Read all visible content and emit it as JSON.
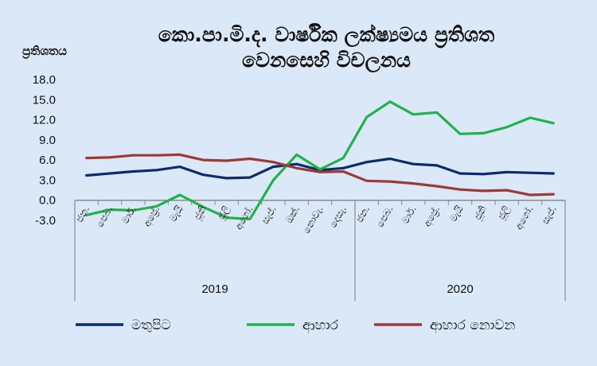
{
  "chart_data": {
    "type": "line",
    "title_lines": [
      "කො.පා.මි.ද. වාර්ෂික ලක්ෂ්‍යමය ප්‍රතිශත",
      "වෙනසෙහි විචලනය"
    ],
    "ylabel": "ප්‍රතිශතය",
    "xlabel": "",
    "ylim": [
      -3.0,
      18.0
    ],
    "yticks": [
      "18.0",
      "15.0",
      "12.0",
      "9.0",
      "6.0",
      "3.0",
      "0.0",
      "-3.0"
    ],
    "ytick_values": [
      18,
      15,
      12,
      9,
      6,
      3,
      0,
      -3
    ],
    "grid": false,
    "legend_position": "bottom",
    "categories": [
      "ජන.",
      "පෙබ.",
      "මාර්.",
      "අප්‍රේ.",
      "මැයි",
      "ජූනි",
      "ජූලි",
      "අගෝ.",
      "සැප්.",
      "ඔක්.",
      "නොවැ.",
      "දෙසැ.",
      "ජන.",
      "පෙබ.",
      "මාර්.",
      "අප්‍රේ.",
      "මැයි",
      "ජූනි",
      "ජූලි",
      "අගෝ.",
      "සැප්."
    ],
    "year_groups": [
      {
        "label": "2019",
        "start": 0,
        "end": 11
      },
      {
        "label": "2020",
        "start": 12,
        "end": 20
      }
    ],
    "series": [
      {
        "name": "මතුපිට",
        "color": "#0d2a6e",
        "values": [
          3.7,
          4.0,
          4.3,
          4.5,
          5.0,
          3.8,
          3.3,
          3.4,
          5.0,
          5.4,
          4.5,
          4.8,
          5.7,
          6.2,
          5.4,
          5.2,
          4.0,
          3.9,
          4.2,
          4.1,
          4.0
        ]
      },
      {
        "name": "ආහාර",
        "color": "#22b24c",
        "values": [
          -2.2,
          -1.4,
          -1.5,
          -0.9,
          0.8,
          -1.0,
          -2.6,
          -2.8,
          3.0,
          6.8,
          4.6,
          6.3,
          12.4,
          14.7,
          12.8,
          13.1,
          9.9,
          10.0,
          10.9,
          12.3,
          11.5
        ]
      },
      {
        "name": "ආහාර නොවන",
        "color": "#9b3a36",
        "values": [
          6.3,
          6.4,
          6.7,
          6.7,
          6.8,
          6.0,
          5.9,
          6.2,
          5.7,
          4.8,
          4.2,
          4.3,
          2.9,
          2.8,
          2.5,
          2.1,
          1.6,
          1.4,
          1.5,
          0.8,
          0.9
        ]
      }
    ]
  }
}
